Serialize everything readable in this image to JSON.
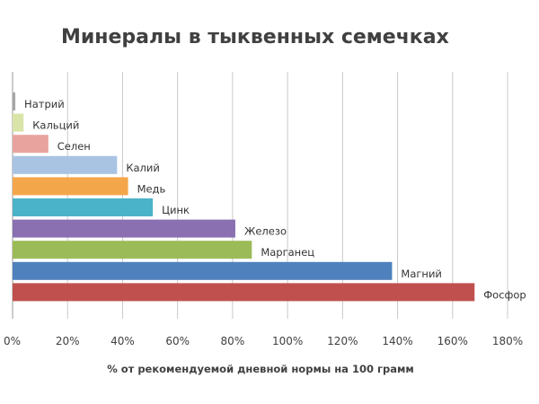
{
  "chart_data": {
    "type": "bar",
    "orientation": "horizontal",
    "title": "Минералы в тыквенных семечках",
    "xlabel": "% от рекомендуемой дневной нормы на 100 грамм",
    "ylabel": "",
    "xlim": [
      0,
      180
    ],
    "xticks": [
      "0%",
      "20%",
      "40%",
      "60%",
      "80%",
      "100%",
      "120%",
      "140%",
      "160%",
      "180%"
    ],
    "grid": true,
    "legend": "none",
    "categories": [
      "Натрий",
      "Кальций",
      "Селен",
      "Калий",
      "Медь",
      "Цинк",
      "Железо",
      "Марганец",
      "Магний",
      "Фосфор"
    ],
    "values": [
      1,
      4,
      13,
      38,
      42,
      51,
      81,
      87,
      138,
      168
    ],
    "colors": [
      "#a6a6a6",
      "#d8e4a8",
      "#e8a39f",
      "#a9c3e3",
      "#f4a64a",
      "#4bb3c9",
      "#8a70b0",
      "#9bbb59",
      "#4f81bd",
      "#c0504d"
    ]
  }
}
